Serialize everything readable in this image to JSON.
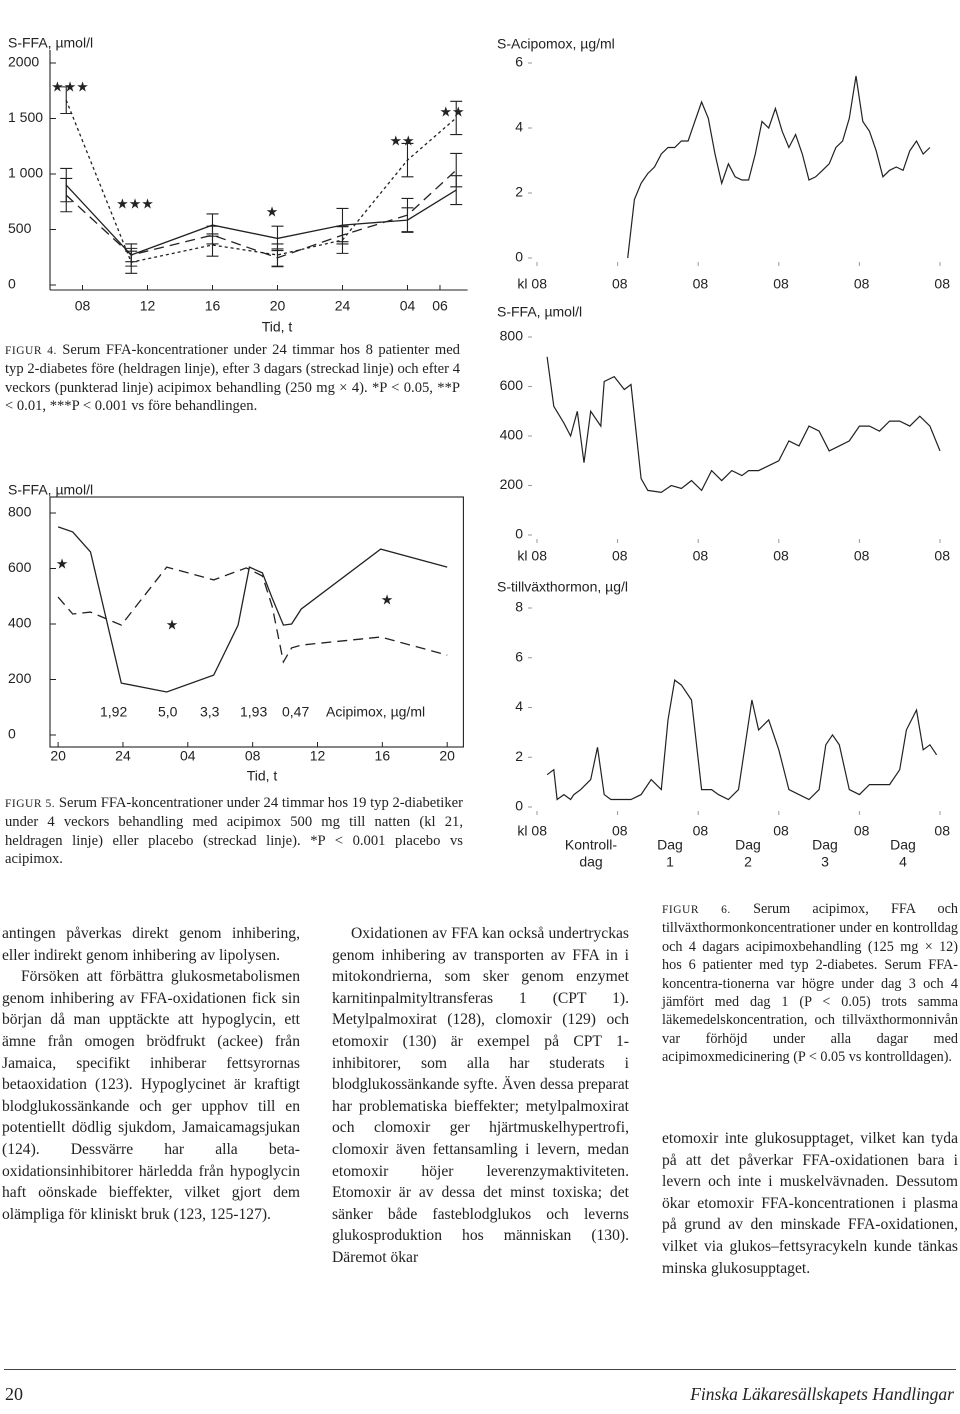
{
  "figures": [
    {
      "label": "FIGUR 4.",
      "caption": "Serum FFA-koncentrationer under 24 timmar hos 8 patienter med typ 2-diabetes före (heldragen linje), efter 3 dagars (streckad linje) och efter 4 veckors (punkterad linje) acipimox behandling (250 mg × 4). *P < 0.05, **P < 0.01, ***P < 0.001 vs före behandlingen.",
      "chart": {
        "type": "line",
        "y_label": "S-FFA, µmol/l",
        "x_label": "Tid, t",
        "xlim": [
          6,
          31.7
        ],
        "ylim": [
          0,
          2000
        ],
        "xticks": [
          {
            "value": 8,
            "label": "08"
          },
          12,
          16,
          20,
          24,
          {
            "value": 28,
            "label": "04"
          },
          {
            "value": 30,
            "label": "06"
          }
        ],
        "yticks": [
          0,
          500,
          {
            "value": 1000,
            "label": "1 000"
          },
          {
            "value": 1500,
            "label": "1 500"
          },
          2000
        ],
        "series": [
          {
            "style": "solid",
            "x": [
              7,
              11,
              16,
              20,
              24,
              28,
              31
            ],
            "values": [
              900,
              270,
              540,
              420,
              540,
              585,
              855
            ],
            "errors": [
              150,
              100,
              100,
              110,
              150,
              110,
              130
            ]
          },
          {
            "style": "dashed",
            "x": [
              7,
              11,
              16,
              20,
              24,
              28,
              31
            ],
            "values": [
              810,
              270,
              450,
              245,
              450,
              630,
              1035
            ],
            "errors": [
              150,
              60,
              80,
              80,
              80,
              150,
              150
            ]
          },
          {
            "style": "dotted",
            "x": [
              7,
              11,
              16,
              20,
              24,
              28,
              31
            ],
            "values": [
              1665,
              205,
              360,
              270,
              405,
              1125,
              1505
            ],
            "errors": [
              120,
              100,
              100,
              100,
              120,
              150,
              150
            ]
          }
        ],
        "annotations": [
          "★★★",
          "★★★",
          "★",
          "★★",
          "★★"
        ]
      }
    },
    {
      "label": "FIGUR 5.",
      "caption": "Serum FFA-koncentrationer under 24 timmar hos 19 typ 2-diabetiker under 4 veckors behandling med acipimox 500 mg till natten (kl 21, heldragen linje) eller placebo (streckad linje). *P < 0.001 placebo vs acipimox.",
      "chart": {
        "type": "line",
        "y_label": "S-FFA, µmol/l",
        "x_label": "Tid, t",
        "xlim": [
          19.5,
          45
        ],
        "ylim": [
          0,
          800
        ],
        "xticks": [
          20,
          24,
          {
            "value": 28,
            "label": "04"
          },
          {
            "value": 32,
            "label": "08"
          },
          {
            "value": 36,
            "label": "12"
          },
          {
            "value": 40,
            "label": "16"
          },
          {
            "value": 44,
            "label": "20"
          }
        ],
        "yticks": [
          0,
          200,
          400,
          600,
          800
        ],
        "series": [
          {
            "style": "solid",
            "x": [
              20,
              20.9,
              22,
              23.9,
              26.7,
              29.6,
              31.1,
              31.8,
              32.6,
              33.2,
              33.9,
              34.4,
              35,
              39.9,
              44
            ],
            "values": [
              750,
              732,
              660,
              187,
              155,
              216,
              396,
              605,
              584,
              494,
              396,
              400,
              454,
              670,
              605
            ]
          },
          {
            "style": "dashed",
            "x": [
              20,
              20.9,
              22,
              23.9,
              26.7,
              29.6,
              31.6,
              32.6,
              33.2,
              33.9,
              34.4,
              35,
              39.9,
              44
            ],
            "values": [
              497,
              436,
              443,
              396,
              605,
              559,
              602,
              573,
              465,
              263,
              314,
              324,
              353,
              288
            ]
          }
        ],
        "annotations": [
          "★",
          "★",
          "★"
        ],
        "acipimox_levels": [
          "1,92",
          "5,0",
          "3,3",
          "1,93",
          "0,47"
        ],
        "acipimox_label": "Acipimox, µg/ml"
      }
    },
    {
      "label": "FIGUR 6.",
      "caption": "Serum acipimox, FFA och tillväxthormonkoncentrationer under en kontrolldag och 4 dagars acipimoxbehandling (125 mg × 12) hos 6 patienter med typ 2-diabetes. Serum FFA-koncentra-tionerna var högre under dag 3 och 4 jämfört med dag 1 (P < 0.05) trots samma läkemedelskoncentration, och tillväxthormonnivån var förhöjd under alla dagar med acipimoxmedicinering (P < 0.05 vs kontrolldagen).",
      "chart": {
        "type": "line",
        "xlim": [
          0,
          120
        ],
        "xticks": [
          {
            "value": 0,
            "label": "kl 08"
          },
          {
            "value": 24,
            "label": "08"
          },
          {
            "value": 48,
            "label": "08"
          },
          {
            "value": 72,
            "label": "08"
          },
          {
            "value": 96,
            "label": "08"
          },
          {
            "value": 120,
            "label": "08"
          }
        ],
        "day_labels": [
          [
            "Kontroll-",
            "dag"
          ],
          [
            "Dag",
            "1"
          ],
          [
            "Dag",
            "2"
          ],
          [
            "Dag",
            "3"
          ],
          [
            "Dag",
            "4"
          ]
        ],
        "panels": [
          {
            "y_label": "S-Acipomox, µg/ml",
            "ylim": [
              0,
              6
            ],
            "yticks": [
              0,
              2,
              4,
              6
            ],
            "x": [
              27,
              29,
              31,
              33,
              35,
              37,
              39,
              41,
              43,
              45,
              47,
              49,
              51,
              53,
              55,
              57,
              59,
              61,
              63,
              65,
              67,
              69,
              71,
              73,
              75,
              77,
              79,
              81,
              83,
              85,
              87,
              89,
              91,
              93,
              95,
              97,
              99,
              101,
              103,
              105,
              107,
              109,
              111,
              113,
              115,
              117
            ],
            "values": [
              0,
              1.8,
              2.3,
              2.6,
              2.8,
              3.2,
              3.4,
              3.4,
              3.6,
              3.6,
              4.2,
              4.8,
              4.3,
              3.2,
              2.3,
              2.9,
              2.5,
              2.4,
              2.4,
              3.2,
              4.2,
              4.0,
              4.6,
              3.9,
              3.4,
              3.8,
              3.2,
              2.4,
              2.5,
              2.7,
              2.9,
              3.4,
              3.6,
              4.3,
              5.6,
              4.2,
              3.9,
              3.3,
              2.5,
              2.7,
              2.8,
              2.7,
              3.3,
              3.6,
              3.2,
              3.4
            ]
          },
          {
            "y_label": "S-FFA, µmol/l",
            "ylim": [
              0,
              800
            ],
            "yticks": [
              0,
              200,
              400,
              600,
              800
            ],
            "x": [
              3,
              5,
              8,
              10,
              12,
              14,
              16,
              19,
              20,
              23,
              26,
              28,
              31,
              33,
              37,
              40,
              43,
              46,
              49,
              52,
              55,
              58,
              61,
              63,
              66,
              69,
              72,
              75,
              78,
              81,
              84,
              87,
              90,
              93,
              96,
              99,
              102,
              105,
              108,
              111,
              114,
              117,
              120
            ],
            "values": [
              720,
              520,
              452,
              400,
              500,
              292,
              500,
              440,
              620,
              640,
              588,
              608,
              228,
              180,
              172,
              200,
              188,
              220,
              180,
              260,
              220,
              260,
              240,
              260,
              260,
              280,
              300,
              380,
              360,
              440,
              420,
              340,
              360,
              380,
              440,
              440,
              420,
              460,
              460,
              440,
              480,
              440,
              340
            ]
          },
          {
            "y_label": "S-tillväxthormon, µg/l",
            "ylim": [
              0,
              8
            ],
            "yticks": [
              0,
              2,
              4,
              6,
              8
            ],
            "x": [
              3,
              5,
              6,
              8,
              10,
              11,
              13,
              16,
              18,
              20,
              22,
              25,
              28,
              31,
              34,
              37,
              39,
              41,
              43,
              46,
              49,
              52,
              54,
              57,
              60,
              62,
              64,
              66,
              69,
              72,
              75,
              78,
              81,
              84,
              86,
              88,
              90,
              93,
              96,
              99,
              102,
              105,
              108,
              110,
              113,
              115,
              117,
              119
            ],
            "values": [
              1.3,
              1.5,
              0.3,
              0.5,
              0.3,
              0.5,
              0.7,
              1.1,
              2.4,
              0.5,
              0.3,
              0.3,
              0.3,
              0.5,
              1.1,
              0.7,
              3.5,
              5.1,
              4.9,
              4.3,
              0.7,
              0.7,
              0.5,
              0.3,
              0.7,
              2.5,
              4.3,
              3.1,
              3.5,
              2.3,
              0.7,
              0.5,
              0.3,
              0.7,
              2.5,
              2.9,
              2.5,
              0.7,
              0.5,
              0.9,
              0.9,
              0.9,
              1.5,
              3.1,
              3.9,
              2.3,
              2.5,
              2.1
            ]
          }
        ]
      }
    }
  ],
  "columns": [
    [
      "antingen påverkas direkt genom inhibering, eller indirekt genom inhibering av lipolysen.",
      "Försöken att förbättra glukosmetabolismen genom inhibering av FFA-oxidationen fick sin början då man upptäckte att hypoglycin, ett ämne från omogen brödfrukt (ackee) från Jamaica, specifikt inhiberar fettsyrornas betaoxidation (123). Hypoglycinet är kraftigt blodglukossänkande och ger upphov till en potentiellt dödlig sjukdom, Jamaicamagsjukan (124). Dessvärre har alla beta-oxidationsinhibitorer härledda från hypoglycin haft oönskade bieffekter, vilket gjort dem olämpliga för kliniskt bruk (123, 125-127)."
    ],
    [
      "Oxidationen av FFA kan också undertryckas genom inhibering av transporten av FFA in i mitokondrierna, som sker genom enzymet karnitinpalmityltransferas 1 (CPT 1). Metylpalmoxirat (128), clomoxir (129) och etomoxir (130) är exempel på CPT 1-inhibitorer, som alla har studerats i blodglukossänkande syfte. Även dessa preparat har problematiska bieffekter; metylpalmoxirat och clomoxir ger hjärtmuskelhypertrofi, clomoxir även fettansamling i levern, medan etomoxir höjer leverenzymaktiviteten. Etomoxir är av dessa det minst toxiska; det sänker både fasteblodglukos och leverns glukosproduktion hos människan (130). Däremot ökar"
    ],
    [
      "etomoxir inte glukosupptaget, vilket kan tyda på att det påverkar FFA-oxidationen bara i levern och inte i muskelvävnaden. Dessutom ökar etomoxir FFA-koncentrationen i plasma på grund av den minskade FFA-oxidationen, vilket via glukos–fettsyracykeln kunde tänkas minska glukosupptaget."
    ]
  ],
  "footer": {
    "page_number": "20",
    "journal": "Finska Läkaresällskapets Handlingar"
  }
}
